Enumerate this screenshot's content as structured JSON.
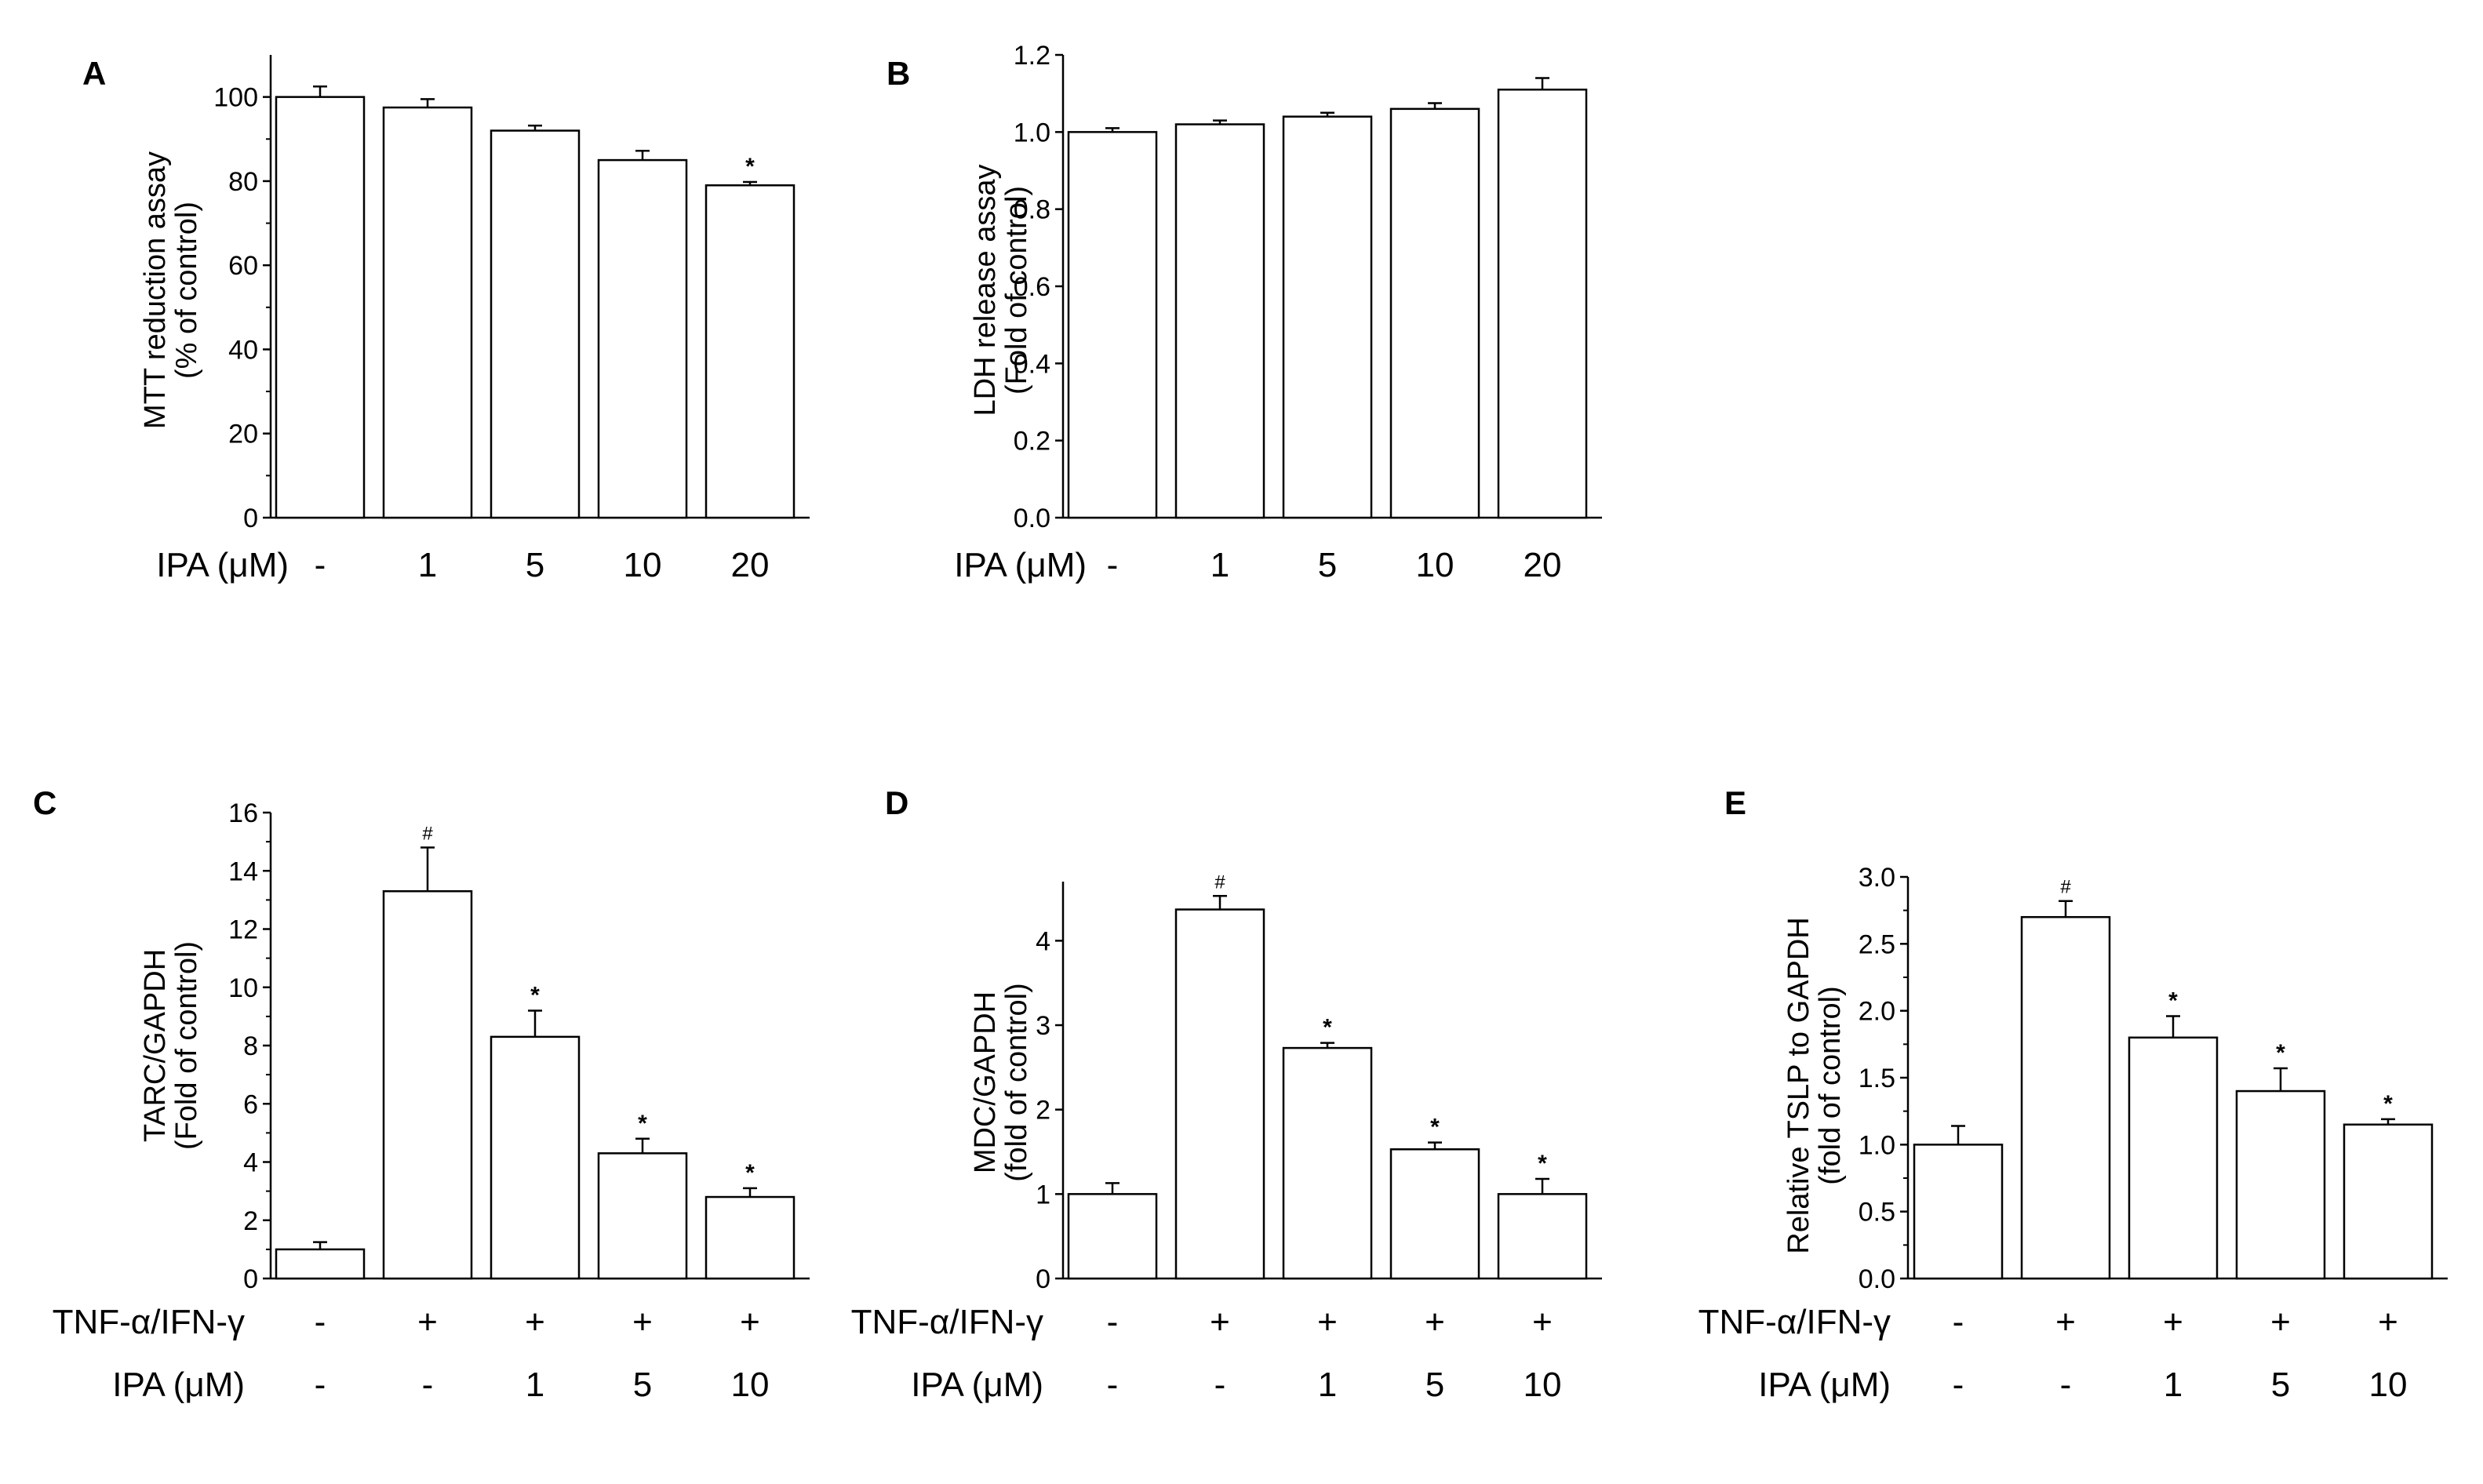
{
  "chart_data": [
    {
      "panel": "A",
      "type": "bar",
      "ylabel": [
        "MTT reduction assay",
        "(% of control)"
      ],
      "ylim": [
        0,
        110
      ],
      "yticks": [
        0,
        20,
        40,
        60,
        80,
        100
      ],
      "ytick_labels": [
        "0",
        "20",
        "40",
        "60",
        "80",
        "100"
      ],
      "rows": [
        {
          "label": "IPA (μM)",
          "values": [
            "-",
            "1",
            "5",
            "10",
            "20"
          ]
        }
      ],
      "values": [
        100,
        97.5,
        92,
        85,
        79
      ],
      "errors": [
        2.5,
        2,
        1.2,
        2.2,
        0.8
      ],
      "markers": [
        "",
        "",
        "",
        "",
        "*"
      ]
    },
    {
      "panel": "B",
      "type": "bar",
      "ylabel": [
        "LDH release assay",
        "(Fold of control)"
      ],
      "ylim": [
        0,
        1.2
      ],
      "yticks": [
        0,
        0.2,
        0.4,
        0.6,
        0.8,
        1.0,
        1.2
      ],
      "ytick_labels": [
        "0.0",
        "0.2",
        "0.4",
        "0.6",
        "0.8",
        "1.0",
        "1.2"
      ],
      "rows": [
        {
          "label": "IPA (μM)",
          "values": [
            "-",
            "1",
            "5",
            "10",
            "20"
          ]
        }
      ],
      "values": [
        1.0,
        1.02,
        1.04,
        1.06,
        1.11
      ],
      "errors": [
        0.01,
        0.01,
        0.01,
        0.015,
        0.03
      ],
      "markers": [
        "",
        "",
        "",
        "",
        ""
      ]
    },
    {
      "panel": "C",
      "type": "bar",
      "ylabel": [
        "TARC/GAPDH",
        "(Fold of control)"
      ],
      "ylim": [
        0,
        16
      ],
      "yticks": [
        0,
        2,
        4,
        6,
        8,
        10,
        12,
        14,
        16
      ],
      "ytick_labels": [
        "0",
        "2",
        "4",
        "6",
        "8",
        "10",
        "12",
        "14",
        "16"
      ],
      "rows": [
        {
          "label": "TNF-α/IFN-γ",
          "values": [
            "-",
            "+",
            "+",
            "+",
            "+"
          ]
        },
        {
          "label": "IPA (μM)",
          "values": [
            "-",
            "-",
            "1",
            "5",
            "10"
          ]
        }
      ],
      "values": [
        1.0,
        13.3,
        8.3,
        4.3,
        2.8
      ],
      "errors": [
        0.25,
        1.5,
        0.9,
        0.5,
        0.3
      ],
      "markers": [
        "",
        "#",
        "*",
        "*",
        "*"
      ]
    },
    {
      "panel": "D",
      "type": "bar",
      "ylabel": [
        "MDC/GAPDH",
        "(fold of control)"
      ],
      "ylim": [
        0,
        4.7
      ],
      "yticks": [
        0,
        1,
        2,
        3,
        4
      ],
      "ytick_labels": [
        "0",
        "1",
        "2",
        "3",
        "4"
      ],
      "rows": [
        {
          "label": "TNF-α/IFN-γ",
          "values": [
            "-",
            "+",
            "+",
            "+",
            "+"
          ]
        },
        {
          "label": "IPA (μM)",
          "values": [
            "-",
            "-",
            "1",
            "5",
            "10"
          ]
        }
      ],
      "values": [
        1.0,
        4.37,
        2.73,
        1.53,
        1.0
      ],
      "errors": [
        0.13,
        0.16,
        0.06,
        0.08,
        0.18
      ],
      "markers": [
        "",
        "#",
        "*",
        "*",
        "*"
      ]
    },
    {
      "panel": "E",
      "type": "bar",
      "ylabel": [
        "Relative TSLP to GAPDH",
        "(fold of control)"
      ],
      "ylim": [
        0,
        3.0
      ],
      "yticks": [
        0,
        0.5,
        1.0,
        1.5,
        2.0,
        2.5,
        3.0
      ],
      "ytick_labels": [
        "0.0",
        "0.5",
        "1.0",
        "1.5",
        "2.0",
        "2.5",
        "3.0"
      ],
      "rows": [
        {
          "label": "TNF-α/IFN-γ",
          "values": [
            "-",
            "+",
            "+",
            "+",
            "+"
          ]
        },
        {
          "label": "IPA (μM)",
          "values": [
            "-",
            "-",
            "1",
            "5",
            "10"
          ]
        }
      ],
      "values": [
        1.0,
        2.7,
        1.8,
        1.4,
        1.15
      ],
      "errors": [
        0.14,
        0.12,
        0.16,
        0.17,
        0.04
      ],
      "markers": [
        "",
        "#",
        "*",
        "*",
        "*"
      ]
    }
  ]
}
